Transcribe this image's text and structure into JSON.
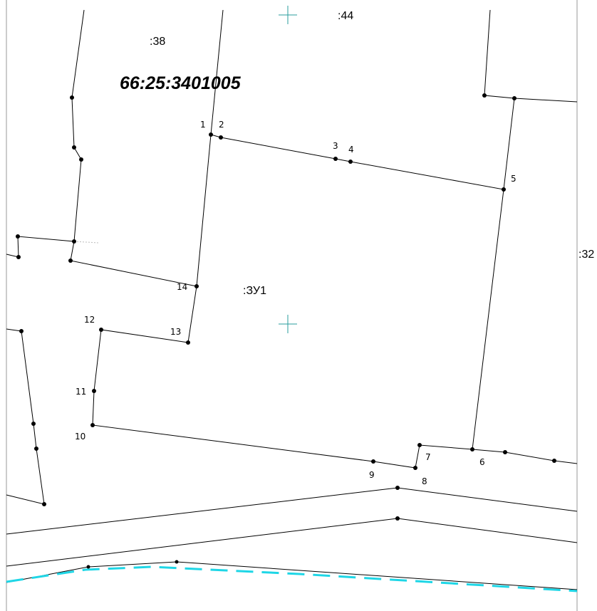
{
  "map": {
    "cadastral_quarter": "66:25:3401005",
    "parcel_labels": {
      "p38": ":38",
      "p44": ":44",
      "p32": ":32",
      "zu1": ":ЗУ1"
    },
    "point_labels": [
      "1",
      "2",
      "3",
      "4",
      "5",
      "6",
      "7",
      "8",
      "9",
      "10",
      "11",
      "12",
      "13",
      "14"
    ],
    "colors": {
      "line": "#000000",
      "boundary_dashed": "#1ed6e6",
      "centroid_cross": "#2a9d9d",
      "frame": "#9a9a9a"
    },
    "icons": {
      "centroid": "crosshair-icon",
      "vertex": "vertex-dot-icon"
    }
  }
}
